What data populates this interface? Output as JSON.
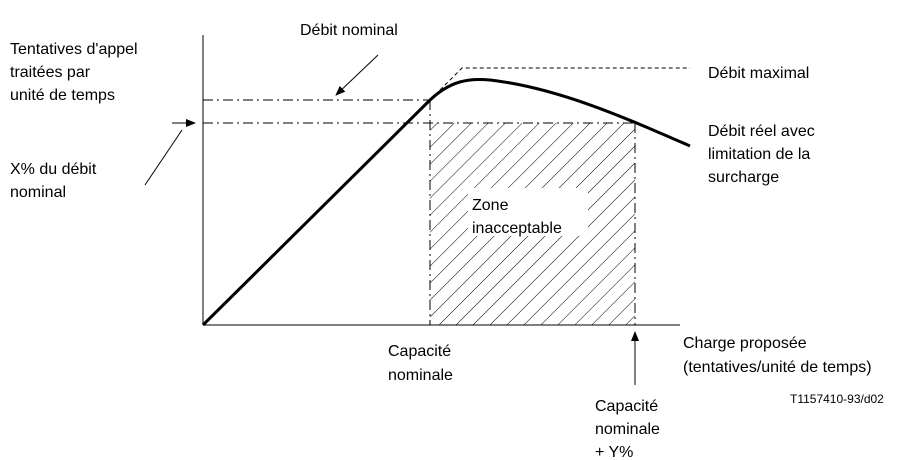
{
  "y_axis_label": [
    "Tentatives d'appel",
    "traitées par",
    "unité de temps"
  ],
  "nominal_throughput": [
    "Débit nominal"
  ],
  "max_throughput": [
    "Débit maximal"
  ],
  "x_percent": [
    "X% du débit",
    "nominal"
  ],
  "real_throughput": [
    "Débit réel avec",
    "limitation de la",
    "surcharge"
  ],
  "zone": [
    "Zone",
    "inacceptable"
  ],
  "x_axis_label": [
    "Charge proposée",
    "(tentatives/unité de temps)"
  ],
  "nominal_capacity": [
    "Capacité",
    "nominale"
  ],
  "nominal_capacity_y": [
    "Capacité",
    "nominale",
    "+ Y%"
  ],
  "reference": [
    "T1157410-93/d02"
  ]
}
